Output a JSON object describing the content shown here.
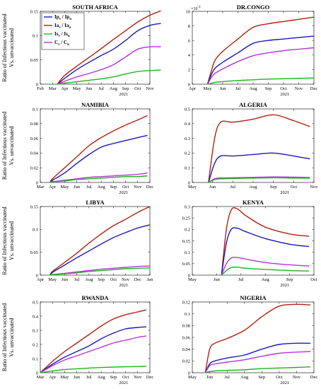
{
  "figure": {
    "ylabel_lines": [
      "Ratio of Infectious vaccinated",
      "Vs. unvaccinated"
    ],
    "colors": {
      "blue": "#1a1ab8",
      "red": "#b32010",
      "green": "#22b022",
      "purple": "#b533d6"
    }
  },
  "chart_data": [
    {
      "type": "line",
      "title": "SOUTH AFRICA",
      "x_ticks": [
        "Feb",
        "Mar",
        "Apr",
        "May",
        "Jun",
        "Jul",
        "Aug",
        "Sep",
        "Oct",
        "Nov"
      ],
      "x_year": "2021",
      "y_ticks": [
        "0",
        "0.05",
        "0.1",
        "0.15"
      ],
      "ylim": [
        0,
        0.15
      ],
      "legend": {
        "placement": "top-left",
        "entries": [
          {
            "color": "blue",
            "label": "Ip",
            "sub": "v",
            "den": "Ip",
            "densub": "u"
          },
          {
            "color": "red",
            "label": "Ia",
            "sub": "v",
            "den": "Ia",
            "densub": "u"
          },
          {
            "color": "green",
            "label": "Is",
            "sub": "v",
            "den": "Is",
            "densub": "u"
          },
          {
            "color": "purple",
            "label": "C",
            "sub": "v",
            "den": "C",
            "densub": "u"
          }
        ]
      },
      "series": [
        {
          "color": "red",
          "x": [
            1.4,
            2,
            3,
            4,
            5,
            6,
            7,
            8,
            9,
            9.9
          ],
          "y": [
            0,
            0.018,
            0.037,
            0.055,
            0.073,
            0.092,
            0.11,
            0.128,
            0.142,
            0.151
          ]
        },
        {
          "color": "blue",
          "x": [
            1.4,
            2,
            3,
            4,
            5,
            6,
            7,
            8,
            9,
            9.9
          ],
          "y": [
            0,
            0.012,
            0.03,
            0.045,
            0.059,
            0.072,
            0.09,
            0.11,
            0.121,
            0.125
          ]
        },
        {
          "color": "purple",
          "x": [
            1.4,
            2,
            3,
            4,
            5,
            6,
            7,
            8,
            9,
            9.9
          ],
          "y": [
            0,
            0.006,
            0.015,
            0.022,
            0.03,
            0.04,
            0.056,
            0.072,
            0.077,
            0.077
          ]
        },
        {
          "color": "green",
          "x": [
            1.4,
            2,
            3,
            4,
            5,
            6,
            7,
            8,
            9,
            9.9
          ],
          "y": [
            0,
            0.002,
            0.005,
            0.008,
            0.011,
            0.015,
            0.021,
            0.026,
            0.028,
            0.029
          ]
        }
      ]
    },
    {
      "type": "line",
      "title": "DR.CONGO",
      "x_ticks": [
        "Apr",
        "May",
        "Jun",
        "Jul",
        "Aug",
        "Sep",
        "Oct",
        "Nov",
        "Dec"
      ],
      "x_year": "2021",
      "y_exponent": "-3",
      "y_ticks": [
        "0",
        "2",
        "4",
        "6",
        "8",
        "10"
      ],
      "ylim": [
        0,
        10
      ],
      "series": [
        {
          "color": "red",
          "x": [
            1,
            1.25,
            1.5,
            2,
            3,
            4,
            5,
            6,
            7,
            8
          ],
          "y": [
            0,
            1.8,
            3.3,
            4.5,
            6.2,
            7.8,
            8.3,
            8.6,
            8.9,
            9.2
          ]
        },
        {
          "color": "blue",
          "x": [
            1,
            1.25,
            1.5,
            2,
            3,
            4,
            5,
            6,
            7,
            8
          ],
          "y": [
            0,
            1.3,
            2.2,
            3,
            4.3,
            5.6,
            6,
            6.2,
            6.4,
            6.6
          ]
        },
        {
          "color": "purple",
          "x": [
            1,
            1.25,
            1.5,
            2,
            3,
            4,
            5,
            6,
            7,
            8
          ],
          "y": [
            0,
            0.9,
            1.5,
            2.1,
            3.1,
            3.9,
            4.3,
            4.6,
            4.8,
            5.0
          ]
        },
        {
          "color": "green",
          "x": [
            1,
            1.25,
            1.5,
            2,
            3,
            4,
            5,
            6,
            7,
            8
          ],
          "y": [
            0,
            0.12,
            0.25,
            0.35,
            0.5,
            0.6,
            0.7,
            0.75,
            0.8,
            0.85
          ]
        }
      ]
    },
    {
      "type": "line",
      "title": "NAMIBIA",
      "x_ticks": [
        "Mar",
        "Apr",
        "May",
        "Jun",
        "Jul",
        "Aug",
        "Sep",
        "Oct",
        "Nov",
        "Dec"
      ],
      "x_year": "2021",
      "y_ticks": [
        "0",
        "0.02",
        "0.04",
        "0.06",
        "0.08",
        "0.1"
      ],
      "ylim": [
        0,
        0.1
      ],
      "series": [
        {
          "color": "red",
          "x": [
            0.8,
            1,
            2,
            3,
            4,
            5,
            6,
            7,
            8,
            8.8
          ],
          "y": [
            0,
            0.005,
            0.02,
            0.035,
            0.05,
            0.061,
            0.07,
            0.078,
            0.085,
            0.091
          ]
        },
        {
          "color": "blue",
          "x": [
            0.8,
            1,
            2,
            3,
            4,
            5,
            6,
            7,
            8,
            8.8
          ],
          "y": [
            0,
            0.003,
            0.013,
            0.026,
            0.038,
            0.048,
            0.053,
            0.057,
            0.061,
            0.064
          ]
        },
        {
          "color": "purple",
          "x": [
            0.8,
            1,
            2,
            3,
            4,
            5,
            6,
            7,
            8,
            8.8
          ],
          "y": [
            0,
            0.001,
            0.003,
            0.005,
            0.007,
            0.008,
            0.009,
            0.01,
            0.011,
            0.013
          ]
        },
        {
          "color": "green",
          "x": [
            0.8,
            1,
            2,
            3,
            4,
            5,
            6,
            7,
            8,
            8.8
          ],
          "y": [
            0,
            0.001,
            0.002,
            0.004,
            0.005,
            0.006,
            0.007,
            0.008,
            0.008,
            0.009
          ]
        }
      ]
    },
    {
      "type": "line",
      "title": "ALGERIA",
      "x_ticks": [
        "May",
        "Jun",
        "Jul",
        "Aug",
        "Sep",
        "Oct",
        "Nov"
      ],
      "x_year": "2021",
      "y_ticks": [
        "0",
        "0.1",
        "0.2",
        "0.3",
        "0.4",
        "0.5"
      ],
      "ylim": [
        0,
        0.5
      ],
      "series": [
        {
          "color": "red",
          "x": [
            0.8,
            1.1,
            1.4,
            2,
            3,
            4,
            5,
            5.8
          ],
          "y": [
            0,
            0.3,
            0.41,
            0.41,
            0.43,
            0.46,
            0.42,
            0.38
          ]
        },
        {
          "color": "blue",
          "x": [
            0.8,
            1.1,
            1.4,
            2,
            3,
            4,
            5,
            5.8
          ],
          "y": [
            0,
            0.13,
            0.18,
            0.18,
            0.19,
            0.2,
            0.18,
            0.16
          ]
        },
        {
          "color": "purple",
          "x": [
            0.8,
            1.1,
            1.4,
            2,
            3,
            4,
            5,
            5.8
          ],
          "y": [
            0,
            0.025,
            0.03,
            0.032,
            0.035,
            0.038,
            0.036,
            0.034
          ]
        },
        {
          "color": "green",
          "x": [
            0.8,
            1.1,
            1.4,
            2,
            3,
            4,
            5,
            5.8
          ],
          "y": [
            0,
            0.02,
            0.025,
            0.027,
            0.03,
            0.032,
            0.03,
            0.029
          ]
        }
      ]
    },
    {
      "type": "line",
      "title": "LIBYA",
      "x_ticks": [
        "Apr",
        "May",
        "Jun",
        "Jul",
        "Aug",
        "Sep",
        "Oct",
        "Nov",
        "Dec",
        "Jan"
      ],
      "x_year": "2021",
      "y_ticks": [
        "0",
        "0.05",
        "0.1",
        "0.15"
      ],
      "ylim": [
        0,
        0.15
      ],
      "series": [
        {
          "color": "red",
          "x": [
            0.8,
            1,
            2,
            3,
            4,
            5,
            6,
            7,
            8,
            9
          ],
          "y": [
            0,
            0.008,
            0.028,
            0.048,
            0.07,
            0.09,
            0.108,
            0.122,
            0.137,
            0.15
          ]
        },
        {
          "color": "blue",
          "x": [
            0.8,
            1,
            2,
            3,
            4,
            5,
            6,
            7,
            8,
            9
          ],
          "y": [
            0,
            0.006,
            0.022,
            0.038,
            0.053,
            0.068,
            0.082,
            0.093,
            0.103,
            0.11
          ]
        },
        {
          "color": "purple",
          "x": [
            0.8,
            1,
            2,
            3,
            4,
            5,
            6,
            7,
            8,
            9
          ],
          "y": [
            0,
            0.001,
            0.004,
            0.007,
            0.01,
            0.013,
            0.015,
            0.017,
            0.019,
            0.02
          ]
        },
        {
          "color": "green",
          "x": [
            0.8,
            1,
            2,
            3,
            4,
            5,
            6,
            7,
            8,
            9
          ],
          "y": [
            0,
            0.001,
            0.003,
            0.005,
            0.008,
            0.01,
            0.012,
            0.014,
            0.015,
            0.016
          ]
        }
      ]
    },
    {
      "type": "line",
      "title": "KENYA",
      "x_ticks": [
        "May",
        "Jun",
        "Jul",
        "Aug",
        "Sep",
        "Oct"
      ],
      "x_year": "2021",
      "y_ticks": [
        "0",
        "0.05",
        "0.1",
        "0.15",
        "0.2",
        "0.25",
        "0.3"
      ],
      "ylim": [
        0,
        0.3
      ],
      "series": [
        {
          "color": "red",
          "x": [
            1.2,
            1.4,
            1.6,
            1.85,
            2.2,
            3,
            4,
            4.8
          ],
          "y": [
            0,
            0.2,
            0.285,
            0.29,
            0.26,
            0.21,
            0.18,
            0.17
          ]
        },
        {
          "color": "blue",
          "x": [
            1.2,
            1.4,
            1.6,
            1.85,
            2.2,
            3,
            4,
            4.8
          ],
          "y": [
            0,
            0.14,
            0.2,
            0.205,
            0.19,
            0.16,
            0.135,
            0.125
          ]
        },
        {
          "color": "purple",
          "x": [
            1.2,
            1.4,
            1.6,
            1.85,
            2.2,
            3,
            4,
            4.8
          ],
          "y": [
            0,
            0.05,
            0.075,
            0.077,
            0.07,
            0.055,
            0.045,
            0.04
          ]
        },
        {
          "color": "green",
          "x": [
            1.2,
            1.4,
            1.6,
            1.85,
            2.2,
            3,
            4,
            4.8
          ],
          "y": [
            0,
            0.02,
            0.033,
            0.035,
            0.03,
            0.025,
            0.02,
            0.018
          ]
        }
      ]
    },
    {
      "type": "line",
      "title": "RWANDA",
      "x_ticks": [
        "Mar",
        "Apr",
        "May",
        "Jun",
        "Jul",
        "Aug",
        "Sep",
        "Oct",
        "Nov",
        "Dec"
      ],
      "x_year": "2021",
      "y_ticks": [
        "0",
        "0.1",
        "0.2",
        "0.3",
        "0.4",
        "0.5"
      ],
      "ylim": [
        0,
        0.5
      ],
      "series": [
        {
          "color": "red",
          "x": [
            0,
            1,
            2,
            3,
            4,
            5,
            6,
            7,
            8,
            8.7
          ],
          "y": [
            0,
            0.08,
            0.15,
            0.21,
            0.27,
            0.33,
            0.38,
            0.41,
            0.43,
            0.445
          ]
        },
        {
          "color": "blue",
          "x": [
            0,
            1,
            2,
            3,
            4,
            5,
            6,
            7,
            8,
            8.7
          ],
          "y": [
            0,
            0.06,
            0.11,
            0.15,
            0.19,
            0.24,
            0.28,
            0.31,
            0.32,
            0.325
          ]
        },
        {
          "color": "purple",
          "x": [
            0,
            1,
            2,
            3,
            4,
            5,
            6,
            7,
            8,
            8.7
          ],
          "y": [
            0,
            0.05,
            0.09,
            0.12,
            0.15,
            0.18,
            0.21,
            0.23,
            0.25,
            0.26
          ]
        },
        {
          "color": "green",
          "x": [
            0,
            1,
            2,
            3,
            4,
            5,
            6,
            7,
            8,
            8.7
          ],
          "y": [
            0,
            0.013,
            0.022,
            0.028,
            0.033,
            0.037,
            0.04,
            0.042,
            0.044,
            0.045
          ]
        }
      ]
    },
    {
      "type": "line",
      "title": "NIGERIA",
      "x_ticks": [
        "May",
        "Jun",
        "Jul",
        "Aug",
        "Sep",
        "Oct",
        "Nov",
        "Dec"
      ],
      "x_year": "2021",
      "y_ticks": [
        "0",
        "0.02",
        "0.04",
        "0.06",
        "0.08",
        "0.1",
        "0.12"
      ],
      "ylim": [
        0,
        0.12
      ],
      "series": [
        {
          "color": "red",
          "x": [
            0.75,
            1,
            1.3,
            2,
            3,
            4,
            5,
            6,
            6.8
          ],
          "y": [
            0,
            0.04,
            0.05,
            0.058,
            0.072,
            0.095,
            0.113,
            0.116,
            0.115
          ]
        },
        {
          "color": "blue",
          "x": [
            0.75,
            1,
            1.3,
            2,
            3,
            4,
            5,
            6,
            6.8
          ],
          "y": [
            0,
            0.015,
            0.02,
            0.025,
            0.03,
            0.04,
            0.048,
            0.05,
            0.05
          ]
        },
        {
          "color": "purple",
          "x": [
            0.75,
            1,
            1.3,
            2,
            3,
            4,
            5,
            6,
            6.8
          ],
          "y": [
            0,
            0.012,
            0.015,
            0.018,
            0.022,
            0.028,
            0.033,
            0.035,
            0.036
          ]
        },
        {
          "color": "green",
          "x": [
            0.75,
            1,
            1.3,
            2,
            3,
            4,
            5,
            6,
            6.8
          ],
          "y": [
            0,
            0.002,
            0.003,
            0.004,
            0.005,
            0.007,
            0.008,
            0.009,
            0.01
          ]
        }
      ]
    }
  ]
}
